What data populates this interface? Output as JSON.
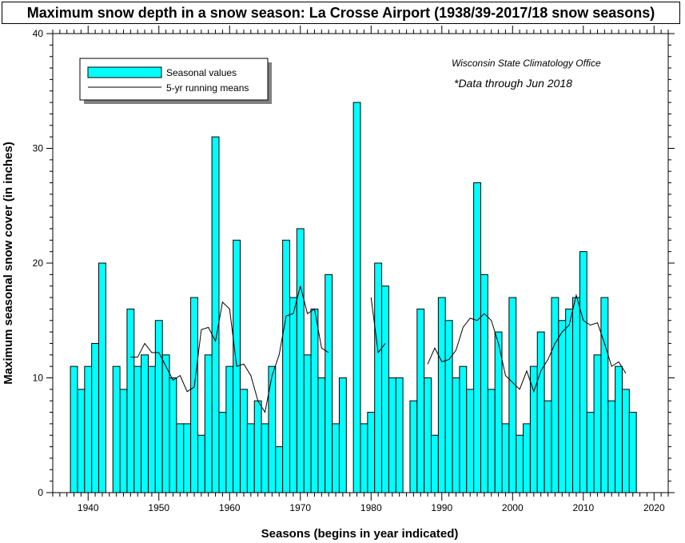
{
  "chart_data": {
    "type": "bar",
    "title": "Maximum snow depth in a snow season: La Crosse Airport (1938/39-2017/18 snow seasons)",
    "xlabel": "Seasons (begins in year indicated)",
    "ylabel": "Maximum seasonal snow cover (in inches)",
    "xlim": [
      1935,
      2022
    ],
    "ylim": [
      0,
      40
    ],
    "x_ticks": [
      "1940",
      "1950",
      "1960",
      "1970",
      "1980",
      "1990",
      "2000",
      "2010",
      "2020"
    ],
    "y_ticks": [
      "0",
      "10",
      "20",
      "30",
      "40"
    ],
    "grid": false,
    "legend": {
      "placement": "top-left",
      "entries": [
        "Seasonal values",
        "5-yr running means"
      ]
    },
    "annotations": [
      "Wisconsin State Climatology Office",
      "*Data through Jun 2018"
    ],
    "colors": {
      "bar": "#00ffff",
      "line": "#000000"
    },
    "series": [
      {
        "name": "Seasonal values",
        "type": "bar",
        "points": [
          [
            1938,
            11
          ],
          [
            1939,
            9
          ],
          [
            1940,
            11
          ],
          [
            1941,
            13
          ],
          [
            1942,
            20
          ],
          [
            1944,
            11
          ],
          [
            1945,
            9
          ],
          [
            1946,
            16
          ],
          [
            1947,
            11
          ],
          [
            1948,
            12
          ],
          [
            1949,
            11
          ],
          [
            1950,
            15
          ],
          [
            1951,
            12
          ],
          [
            1952,
            10
          ],
          [
            1953,
            6
          ],
          [
            1954,
            6
          ],
          [
            1955,
            17
          ],
          [
            1956,
            5
          ],
          [
            1957,
            12
          ],
          [
            1958,
            31
          ],
          [
            1959,
            7
          ],
          [
            1960,
            11
          ],
          [
            1961,
            22
          ],
          [
            1962,
            9
          ],
          [
            1963,
            6
          ],
          [
            1964,
            8
          ],
          [
            1965,
            6
          ],
          [
            1966,
            11
          ],
          [
            1967,
            4
          ],
          [
            1968,
            22
          ],
          [
            1969,
            17
          ],
          [
            1970,
            23
          ],
          [
            1971,
            12
          ],
          [
            1972,
            16
          ],
          [
            1973,
            10
          ],
          [
            1974,
            19
          ],
          [
            1975,
            6
          ],
          [
            1976,
            10
          ],
          [
            1978,
            34
          ],
          [
            1979,
            6
          ],
          [
            1980,
            7
          ],
          [
            1981,
            20
          ],
          [
            1982,
            18
          ],
          [
            1983,
            10
          ],
          [
            1984,
            10
          ],
          [
            1986,
            8
          ],
          [
            1987,
            16
          ],
          [
            1988,
            10
          ],
          [
            1989,
            5
          ],
          [
            1990,
            17
          ],
          [
            1991,
            15
          ],
          [
            1992,
            10
          ],
          [
            1993,
            11
          ],
          [
            1994,
            9
          ],
          [
            1995,
            27
          ],
          [
            1996,
            19
          ],
          [
            1997,
            9
          ],
          [
            1998,
            14
          ],
          [
            1999,
            6
          ],
          [
            2000,
            17
          ],
          [
            2001,
            5
          ],
          [
            2002,
            6
          ],
          [
            2003,
            11
          ],
          [
            2004,
            14
          ],
          [
            2005,
            8
          ],
          [
            2006,
            17
          ],
          [
            2007,
            15
          ],
          [
            2008,
            16
          ],
          [
            2009,
            17
          ],
          [
            2010,
            21
          ],
          [
            2011,
            7
          ],
          [
            2012,
            12
          ],
          [
            2013,
            17
          ],
          [
            2014,
            8
          ],
          [
            2015,
            11
          ],
          [
            2016,
            9
          ],
          [
            2017,
            7
          ]
        ]
      },
      {
        "name": "5-yr running means",
        "type": "line",
        "segments": [
          [
            [
              1946,
              11.8
            ],
            [
              1947,
              11.8
            ],
            [
              1948,
              13
            ],
            [
              1949,
              12.2
            ],
            [
              1950,
              12.2
            ],
            [
              1951,
              11
            ],
            [
              1952,
              9.8
            ],
            [
              1953,
              10.2
            ],
            [
              1954,
              8.8
            ],
            [
              1955,
              9.2
            ],
            [
              1956,
              14.2
            ],
            [
              1957,
              14.4
            ],
            [
              1958,
              13.2
            ],
            [
              1959,
              16.6
            ],
            [
              1960,
              16
            ],
            [
              1961,
              11
            ],
            [
              1962,
              11.2
            ],
            [
              1963,
              10.2
            ],
            [
              1964,
              8
            ],
            [
              1965,
              7
            ],
            [
              1966,
              10.2
            ],
            [
              1967,
              12
            ],
            [
              1968,
              15.4
            ],
            [
              1969,
              15.6
            ],
            [
              1970,
              18
            ],
            [
              1971,
              15.6
            ],
            [
              1972,
              16
            ],
            [
              1973,
              12.6
            ],
            [
              1974,
              12.2
            ]
          ],
          [
            [
              1980,
              17
            ],
            [
              1981,
              12.2
            ],
            [
              1982,
              13
            ]
          ],
          [
            [
              1988,
              11.2
            ],
            [
              1989,
              12.6
            ],
            [
              1990,
              11.4
            ],
            [
              1991,
              11.6
            ],
            [
              1992,
              12.4
            ],
            [
              1993,
              14.4
            ],
            [
              1994,
              15.2
            ],
            [
              1995,
              15
            ],
            [
              1996,
              15.6
            ],
            [
              1997,
              15
            ],
            [
              1998,
              13
            ],
            [
              1999,
              10.2
            ],
            [
              2000,
              9.6
            ],
            [
              2001,
              9
            ],
            [
              2002,
              10.6
            ],
            [
              2003,
              8.8
            ],
            [
              2004,
              10.6
            ],
            [
              2005,
              11.6
            ],
            [
              2006,
              13
            ],
            [
              2007,
              14
            ],
            [
              2008,
              14.6
            ],
            [
              2009,
              17.2
            ],
            [
              2010,
              15
            ],
            [
              2011,
              14.6
            ],
            [
              2012,
              14.8
            ],
            [
              2013,
              13
            ],
            [
              2014,
              11
            ],
            [
              2015,
              11.4
            ],
            [
              2016,
              10.4
            ]
          ]
        ]
      }
    ]
  }
}
